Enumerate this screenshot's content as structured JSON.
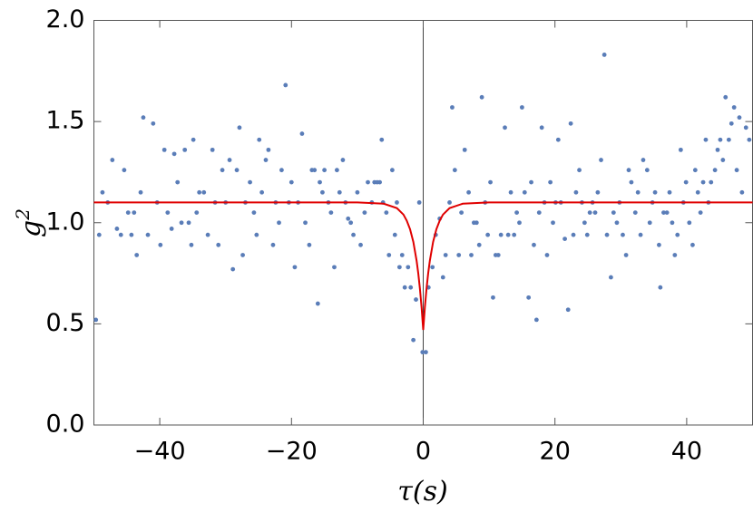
{
  "chart_data": {
    "type": "scatter",
    "xlabel": "τ(s)",
    "ylabel": "g",
    "ylabel_sup": "2",
    "xlim": [
      -50,
      50
    ],
    "ylim": [
      0,
      2
    ],
    "xticks": [
      -40,
      -20,
      0,
      20,
      40
    ],
    "yticks": [
      {
        "value": 0,
        "label": "0.0"
      },
      0.5,
      {
        "value": 1,
        "label": "1.0"
      },
      1.5,
      {
        "value": 2,
        "label": "2.0"
      }
    ],
    "series": [
      {
        "type": "scatter",
        "color": "#5a7db8",
        "x": [
          -49.7,
          -49.2,
          -48.7,
          -47.9,
          -47.2,
          -46.5,
          -45.9,
          -45.4,
          -44.8,
          -44.3,
          -43.9,
          -43.5,
          -42.9,
          -42.5,
          -41.8,
          -41.0,
          -40.4,
          -39.9,
          -39.3,
          -38.8,
          -38.2,
          -37.8,
          -37.3,
          -36.7,
          -36.2,
          -35.6,
          -35.2,
          -34.9,
          -34.4,
          -34.0,
          -33.3,
          -32.7,
          -32.0,
          -31.6,
          -31.1,
          -30.5,
          -30.0,
          -29.4,
          -28.9,
          -28.3,
          -27.9,
          -27.4,
          -27.0,
          -26.3,
          -25.7,
          -25.3,
          -24.9,
          -24.5,
          -23.9,
          -23.5,
          -22.8,
          -22.4,
          -21.9,
          -21.5,
          -20.9,
          -20.4,
          -20.0,
          -19.5,
          -19.0,
          -18.4,
          -17.9,
          -17.3,
          -16.9,
          -16.5,
          -16.0,
          -15.7,
          -15.3,
          -15.0,
          -14.4,
          -14.0,
          -13.5,
          -13.1,
          -12.7,
          -12.2,
          -11.8,
          -11.4,
          -11.0,
          -10.6,
          -10.0,
          -9.5,
          -8.9,
          -8.4,
          -7.8,
          -7.4,
          -7.0,
          -6.6,
          -6.3,
          -6.1,
          -5.6,
          -5.2,
          -4.7,
          -4.3,
          -4.0,
          -3.6,
          -3.2,
          -2.8,
          -2.3,
          -1.9,
          -1.5,
          -1.1,
          -0.6,
          -0.1,
          0.4,
          0.8,
          1.4,
          1.9,
          2.5,
          3.0,
          3.4,
          4.0,
          4.4,
          4.8,
          5.4,
          5.8,
          6.3,
          6.9,
          7.3,
          7.7,
          8.1,
          8.5,
          8.9,
          9.4,
          9.8,
          10.2,
          10.6,
          11.0,
          11.4,
          11.8,
          12.4,
          12.9,
          13.3,
          13.8,
          14.2,
          14.6,
          15.0,
          15.4,
          16.0,
          16.4,
          16.8,
          17.2,
          17.6,
          18.0,
          18.4,
          18.8,
          19.3,
          19.7,
          20.1,
          20.5,
          20.9,
          21.5,
          22.0,
          22.4,
          22.8,
          23.2,
          23.7,
          24.1,
          24.5,
          24.9,
          25.3,
          25.7,
          26.1,
          26.5,
          27.0,
          27.5,
          27.9,
          28.5,
          28.9,
          29.4,
          29.8,
          30.3,
          30.8,
          31.2,
          31.6,
          32.2,
          32.6,
          33.0,
          33.4,
          34.0,
          34.4,
          34.8,
          35.2,
          35.8,
          36.0,
          36.5,
          37.0,
          37.4,
          37.8,
          38.2,
          38.6,
          39.1,
          39.5,
          39.9,
          40.4,
          40.9,
          41.3,
          41.7,
          42.1,
          42.5,
          42.9,
          43.3,
          43.7,
          44.3,
          44.7,
          45.1,
          45.5,
          45.9,
          46.4,
          46.8,
          47.2,
          47.6,
          48.0,
          48.4,
          49.0,
          49.5
        ],
        "values": [
          0.52,
          0.94,
          1.15,
          1.1,
          1.31,
          0.97,
          0.94,
          1.26,
          1.05,
          0.94,
          1.05,
          0.84,
          1.15,
          1.52,
          0.94,
          1.49,
          1.1,
          0.89,
          1.36,
          1.05,
          0.97,
          1.34,
          1.2,
          1.0,
          1.36,
          1.0,
          0.89,
          1.41,
          1.05,
          1.15,
          1.15,
          0.94,
          1.36,
          1.1,
          0.89,
          1.26,
          1.1,
          1.31,
          0.77,
          1.26,
          1.47,
          0.84,
          1.1,
          1.2,
          1.05,
          0.94,
          1.41,
          1.15,
          1.31,
          1.36,
          0.89,
          1.1,
          1.0,
          1.26,
          1.68,
          1.1,
          1.2,
          0.78,
          1.1,
          1.44,
          1.0,
          0.89,
          1.26,
          1.26,
          0.6,
          1.2,
          1.15,
          1.26,
          1.1,
          1.05,
          0.78,
          1.26,
          1.15,
          1.31,
          1.1,
          1.02,
          1.0,
          0.94,
          1.15,
          0.89,
          1.05,
          1.2,
          1.1,
          1.2,
          1.2,
          1.2,
          1.41,
          1.1,
          1.05,
          0.84,
          1.26,
          0.94,
          1.1,
          0.78,
          0.84,
          0.68,
          0.78,
          0.68,
          0.42,
          0.62,
          1.1,
          0.36,
          0.36,
          0.68,
          0.78,
          0.94,
          1.02,
          0.73,
          0.84,
          1.1,
          1.57,
          1.26,
          0.84,
          1.05,
          1.36,
          1.15,
          0.84,
          1.0,
          1.0,
          0.89,
          1.62,
          1.1,
          0.94,
          1.2,
          0.63,
          0.84,
          0.84,
          0.94,
          1.47,
          0.94,
          1.15,
          0.94,
          1.05,
          1.0,
          1.57,
          1.15,
          0.63,
          1.2,
          0.89,
          0.52,
          1.05,
          1.47,
          1.1,
          0.84,
          1.2,
          1.0,
          1.1,
          1.41,
          1.1,
          0.92,
          0.57,
          1.49,
          0.94,
          1.15,
          1.26,
          1.1,
          1.0,
          0.94,
          1.05,
          1.1,
          1.05,
          1.15,
          1.31,
          1.83,
          0.94,
          0.73,
          1.05,
          1.0,
          1.1,
          0.94,
          0.84,
          1.26,
          1.2,
          1.05,
          1.15,
          0.94,
          1.31,
          1.26,
          1.0,
          1.1,
          1.15,
          0.89,
          0.68,
          1.05,
          1.05,
          1.15,
          1.0,
          0.84,
          0.94,
          1.36,
          1.1,
          1.2,
          1.0,
          0.89,
          1.26,
          1.15,
          1.05,
          1.2,
          1.41,
          1.1,
          1.2,
          1.26,
          1.36,
          1.41,
          1.31,
          1.62,
          1.41,
          1.49,
          1.57,
          1.26,
          1.52,
          1.15,
          1.47,
          1.41
        ]
      },
      {
        "type": "line",
        "color": "#e00000",
        "x": [
          -50,
          -10,
          -6,
          -4,
          -3,
          -2.5,
          -2,
          -1.5,
          -1,
          -0.75,
          -0.5,
          -0.25,
          0,
          0.25,
          0.5,
          0.75,
          1,
          1.5,
          2,
          2.5,
          3,
          4,
          6,
          10,
          50
        ],
        "values": [
          1.1,
          1.1,
          1.094,
          1.072,
          1.04,
          1.01,
          0.968,
          0.905,
          0.811,
          0.749,
          0.673,
          0.582,
          0.47,
          0.582,
          0.673,
          0.749,
          0.811,
          0.905,
          0.968,
          1.01,
          1.04,
          1.072,
          1.094,
          1.1,
          1.1
        ]
      }
    ]
  }
}
